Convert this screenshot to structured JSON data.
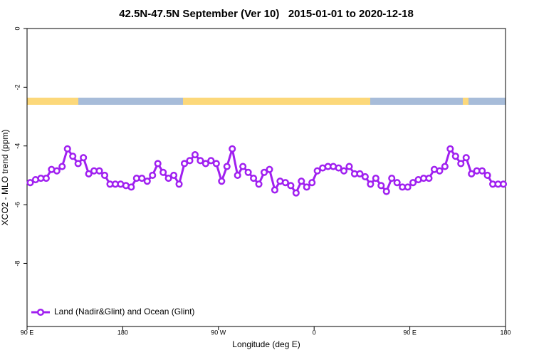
{
  "chart_data": {
    "type": "line",
    "title": "42.5N-47.5N September (Ver 10)   2015-01-01 to 2020-12-18",
    "x_label": "Longitude (deg E)",
    "y_label": "XCO2 - MLO trend (ppm)",
    "x": [
      93,
      98,
      103,
      108,
      113,
      118,
      123,
      128,
      133,
      138,
      143,
      148,
      153,
      158,
      163,
      168,
      173,
      178,
      183,
      188,
      193,
      198,
      203,
      208,
      213,
      218,
      223,
      228,
      233,
      238,
      243,
      248,
      253,
      258,
      263,
      268,
      273,
      278,
      283,
      288,
      293,
      298,
      303,
      308,
      313,
      318,
      323,
      328,
      333,
      338,
      343,
      348,
      353,
      358,
      363,
      368,
      373,
      378,
      383,
      388,
      393,
      398,
      403,
      408,
      413,
      418,
      423,
      428,
      433,
      438,
      443,
      448,
      453,
      458,
      463,
      468,
      473,
      478,
      483,
      488,
      493,
      498,
      503,
      508,
      513,
      518,
      523,
      528,
      533,
      538
    ],
    "series": [
      {
        "name": "Land (Nadir&Glint) and Ocean (Glint)",
        "color": "#a020f0",
        "values": [
          -5.25,
          -5.15,
          -5.1,
          -5.1,
          -4.8,
          -4.85,
          -4.7,
          -4.1,
          -4.35,
          -4.6,
          -4.4,
          -4.95,
          -4.85,
          -4.85,
          -5.0,
          -5.3,
          -5.3,
          -5.3,
          -5.35,
          -5.4,
          -5.1,
          -5.1,
          -5.2,
          -5.0,
          -4.6,
          -4.9,
          -5.1,
          -5.0,
          -5.3,
          -4.6,
          -4.5,
          -4.3,
          -4.5,
          -4.6,
          -4.5,
          -4.6,
          -5.2,
          -4.7,
          -4.1,
          -5.0,
          -4.7,
          -4.9,
          -5.1,
          -5.3,
          -4.9,
          -4.8,
          -5.5,
          -5.2,
          -5.25,
          -5.35,
          -5.6,
          -5.2,
          -5.4,
          -5.25,
          -4.85,
          -4.75,
          -4.7,
          -4.7,
          -4.75,
          -4.85,
          -4.7,
          -4.95,
          -4.95,
          -5.05,
          -5.3,
          -5.1,
          -5.35,
          -5.55,
          -5.1,
          -5.25,
          -5.4,
          -5.4,
          -5.25,
          -5.15,
          -5.1,
          -5.1,
          -4.8,
          -4.85,
          -4.7,
          -4.1,
          -4.35,
          -4.6,
          -4.4,
          -4.95,
          -4.85,
          -4.85,
          -5.0,
          -5.3,
          -5.3,
          -5.3
        ]
      }
    ],
    "xlim": [
      90,
      540
    ],
    "xticks": [
      {
        "value": 90,
        "label": "90 E"
      },
      {
        "value": 180,
        "label": "180"
      },
      {
        "value": 270,
        "label": "90 W"
      },
      {
        "value": 360,
        "label": "0"
      },
      {
        "value": 450,
        "label": "90 E"
      },
      {
        "value": 540,
        "label": "180"
      }
    ],
    "ylim": [
      -10.15,
      0
    ],
    "yticks": [
      0,
      -2,
      -4,
      -6,
      -8
    ],
    "grid": false,
    "legend": "bottom-left"
  }
}
